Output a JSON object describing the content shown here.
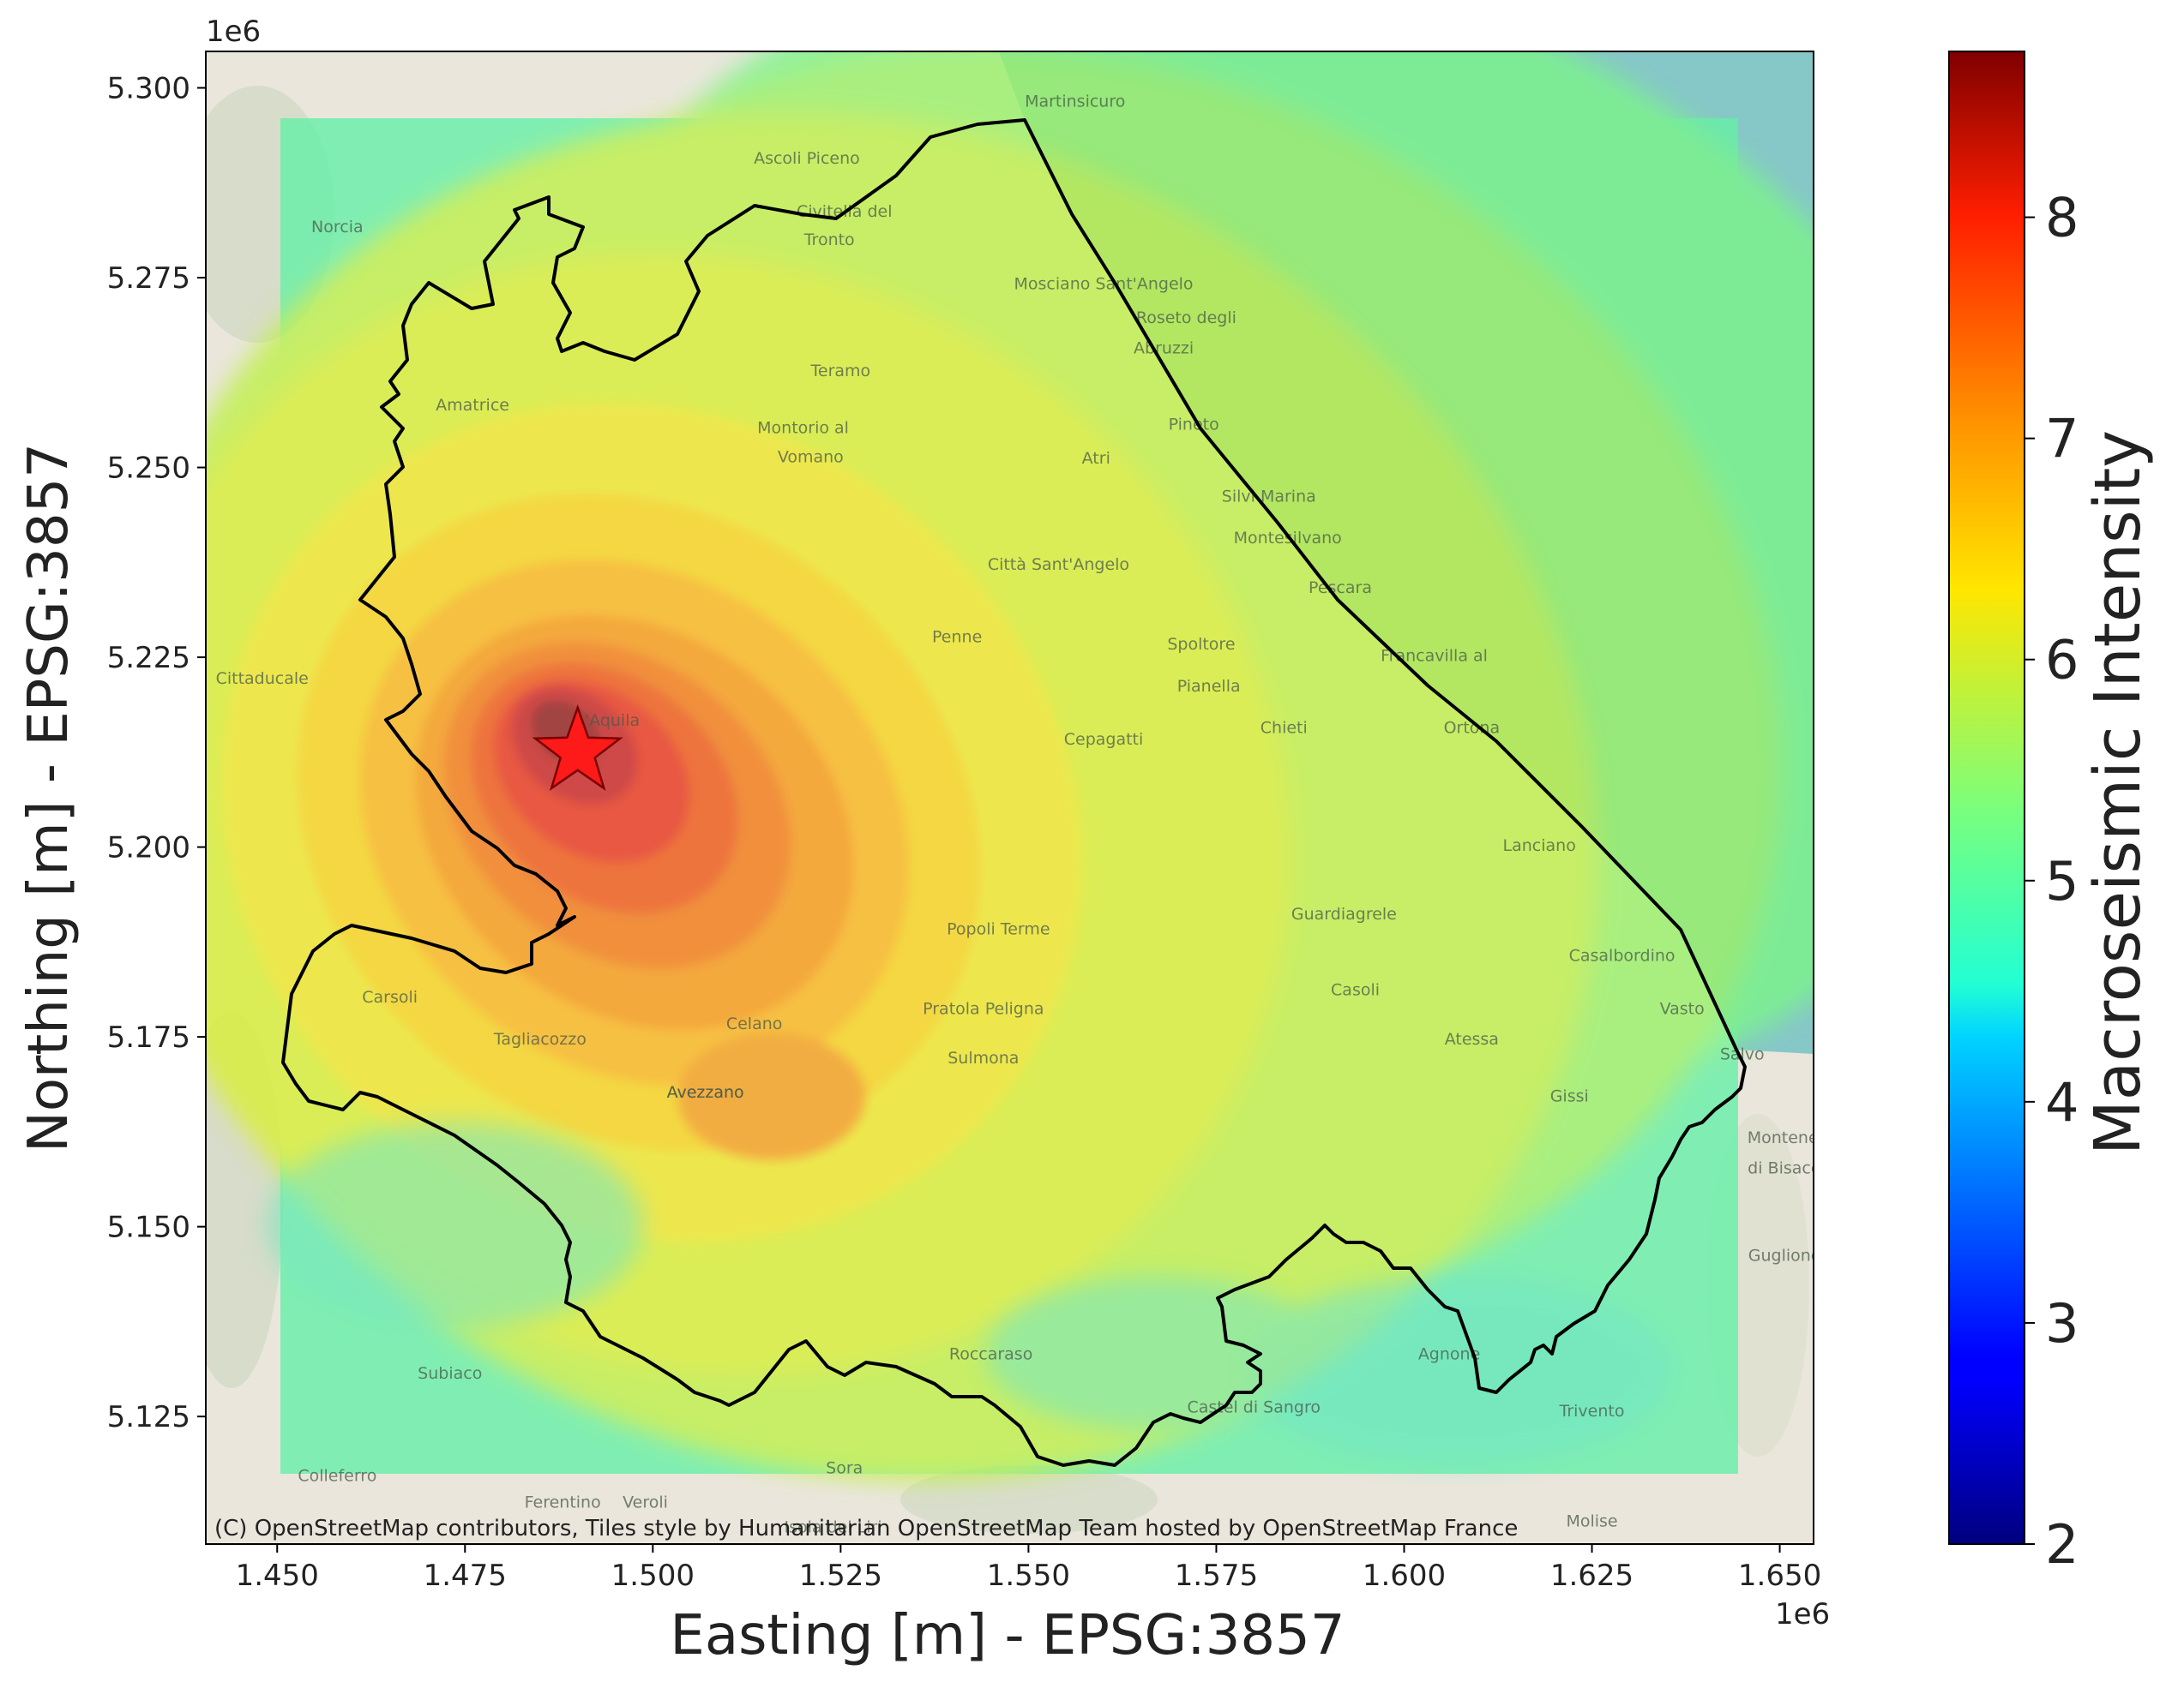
{
  "map": {
    "x_ticks": [
      "1.450",
      "1.475",
      "1.500",
      "1.525",
      "1.550",
      "1.575",
      "1.600",
      "1.625",
      "1.650"
    ],
    "x_tick_values": [
      1.45,
      1.475,
      1.5,
      1.525,
      1.55,
      1.575,
      1.6,
      1.625,
      1.65
    ],
    "y_ticks": [
      "5.300",
      "5.275",
      "5.250",
      "5.225",
      "5.200",
      "5.175",
      "5.150",
      "5.125"
    ],
    "y_tick_values": [
      5.3,
      5.275,
      5.25,
      5.225,
      5.2,
      5.175,
      5.15,
      5.125
    ],
    "x_lim": [
      1.4405,
      1.6545
    ],
    "y_lim": [
      5.1082,
      5.3048
    ],
    "x_offset_label": "1e6",
    "y_offset_label": "1e6",
    "xlabel": "Easting [m] - EPSG:3857",
    "ylabel": "Northing [m] - EPSG:3857",
    "attribution": "(C) OpenStreetMap contributors, Tiles style by Humanitarian OpenStreetMap Team hosted by OpenStreetMap France",
    "epicenter": {
      "x": 1.49,
      "y": 5.2125,
      "marker": "star-icon",
      "color": "#ff1a1a"
    },
    "sea_color": "#86c7c7",
    "basemap_color": "#eae6dc",
    "boundary_color": "#000000",
    "place_names": [
      {
        "text": "Martinsicuro",
        "x": 1.5562,
        "y": 5.2975
      },
      {
        "text": "Ascoli Piceno",
        "x": 1.5205,
        "y": 5.29
      },
      {
        "text": "Civitella del",
        "x": 1.5255,
        "y": 5.283
      },
      {
        "text": "Tronto",
        "x": 1.5235,
        "y": 5.2793
      },
      {
        "text": "Mosciano Sant'Angelo",
        "x": 1.56,
        "y": 5.2735
      },
      {
        "text": "Roseto degli",
        "x": 1.571,
        "y": 5.269
      },
      {
        "text": "Abruzzi",
        "x": 1.568,
        "y": 5.265
      },
      {
        "text": "Teramo",
        "x": 1.525,
        "y": 5.262
      },
      {
        "text": "Montorio al",
        "x": 1.52,
        "y": 5.2545
      },
      {
        "text": "Vomano",
        "x": 1.521,
        "y": 5.2507
      },
      {
        "text": "Atri",
        "x": 1.559,
        "y": 5.2505
      },
      {
        "text": "Pineto",
        "x": 1.572,
        "y": 5.255
      },
      {
        "text": "Silvi Marina",
        "x": 1.582,
        "y": 5.2455
      },
      {
        "text": "Montesilvano",
        "x": 1.5845,
        "y": 5.24
      },
      {
        "text": "Città Sant'Angelo",
        "x": 1.554,
        "y": 5.2365
      },
      {
        "text": "Pescara",
        "x": 1.5915,
        "y": 5.2335
      },
      {
        "text": "Penne",
        "x": 1.5405,
        "y": 5.227
      },
      {
        "text": "Spoltore",
        "x": 1.573,
        "y": 5.226
      },
      {
        "text": "Francavilla al",
        "x": 1.604,
        "y": 5.2245
      },
      {
        "text": "Pianella",
        "x": 1.574,
        "y": 5.2205
      },
      {
        "text": "Chieti",
        "x": 1.584,
        "y": 5.215
      },
      {
        "text": "Cepagatti",
        "x": 1.56,
        "y": 5.2135
      },
      {
        "text": "Ortona",
        "x": 1.609,
        "y": 5.215
      },
      {
        "text": "L'Aquila",
        "x": 1.494,
        "y": 5.216
      },
      {
        "text": "Cittaducale",
        "x": 1.448,
        "y": 5.2215
      },
      {
        "text": "Amatrice",
        "x": 1.476,
        "y": 5.2575
      },
      {
        "text": "Norcia",
        "x": 1.458,
        "y": 5.281
      },
      {
        "text": "Lanciano",
        "x": 1.618,
        "y": 5.1995
      },
      {
        "text": "Guardiagrele",
        "x": 1.592,
        "y": 5.1905
      },
      {
        "text": "Popoli Terme",
        "x": 1.546,
        "y": 5.1885
      },
      {
        "text": "Casoli",
        "x": 1.5935,
        "y": 5.1805
      },
      {
        "text": "Vasto",
        "x": 1.637,
        "y": 5.178
      },
      {
        "text": "Casalbordino",
        "x": 1.629,
        "y": 5.185
      },
      {
        "text": "Pratola Peligna",
        "x": 1.544,
        "y": 5.178
      },
      {
        "text": "Atessa",
        "x": 1.609,
        "y": 5.174
      },
      {
        "text": "Salvo",
        "x": 1.645,
        "y": 5.172
      },
      {
        "text": "Gissi",
        "x": 1.622,
        "y": 5.1665
      },
      {
        "text": "Sulmona",
        "x": 1.544,
        "y": 5.1715
      },
      {
        "text": "Tagliacozzo",
        "x": 1.485,
        "y": 5.174
      },
      {
        "text": "Avezzano",
        "x": 1.507,
        "y": 5.167
      },
      {
        "text": "Celano",
        "x": 1.5135,
        "y": 5.176
      },
      {
        "text": "Carsoli",
        "x": 1.465,
        "y": 5.1795
      },
      {
        "text": "Montenero",
        "x": 1.6515,
        "y": 5.161
      },
      {
        "text": "di Bisaccia",
        "x": 1.6515,
        "y": 5.157
      },
      {
        "text": "Guglionesi",
        "x": 1.6515,
        "y": 5.1455
      },
      {
        "text": "Agnone",
        "x": 1.606,
        "y": 5.1325
      },
      {
        "text": "Castel di Sangro",
        "x": 1.58,
        "y": 5.1255
      },
      {
        "text": "Trivento",
        "x": 1.625,
        "y": 5.125
      },
      {
        "text": "Roccaraso",
        "x": 1.545,
        "y": 5.1325
      },
      {
        "text": "Subiaco",
        "x": 1.473,
        "y": 5.13
      },
      {
        "text": "Colleferro",
        "x": 1.458,
        "y": 5.1165
      },
      {
        "text": "Ferentino",
        "x": 1.488,
        "y": 5.113
      },
      {
        "text": "Veroli",
        "x": 1.499,
        "y": 5.113
      },
      {
        "text": "Sora",
        "x": 1.5255,
        "y": 5.1175
      },
      {
        "text": "Isola del Liri",
        "x": 1.524,
        "y": 5.1097
      },
      {
        "text": "Molise",
        "x": 1.625,
        "y": 5.1105
      },
      {
        "text": "Avezzano",
        "x": 1.507,
        "y": 5.167
      }
    ]
  },
  "colorbar": {
    "label": "Macroseismic Intensity",
    "range": [
      2,
      8.75
    ],
    "ticks": [
      "2",
      "3",
      "4",
      "5",
      "6",
      "7",
      "8"
    ],
    "tick_values": [
      2,
      3,
      4,
      5,
      6,
      7,
      8
    ],
    "colormap": "jet"
  },
  "chart_data": {
    "type": "heatmap",
    "title": "",
    "xlabel": "Easting [m] - EPSG:3857",
    "ylabel": "Northing [m] - EPSG:3857",
    "x_range_e6": [
      1.4405,
      1.6545
    ],
    "y_range_e6": [
      5.1082,
      5.3048
    ],
    "intensity_grid_extent_e6": {
      "x": [
        1.4505,
        1.6455
      ],
      "y": [
        5.114,
        5.2963
      ]
    },
    "epicenter_e6": [
      1.49,
      5.2125
    ],
    "max_intensity": 8.6,
    "min_intensity_on_grid": 5.0,
    "colorbar_range": [
      2,
      8.75
    ],
    "colorbar_label": "Macroseismic Intensity"
  }
}
